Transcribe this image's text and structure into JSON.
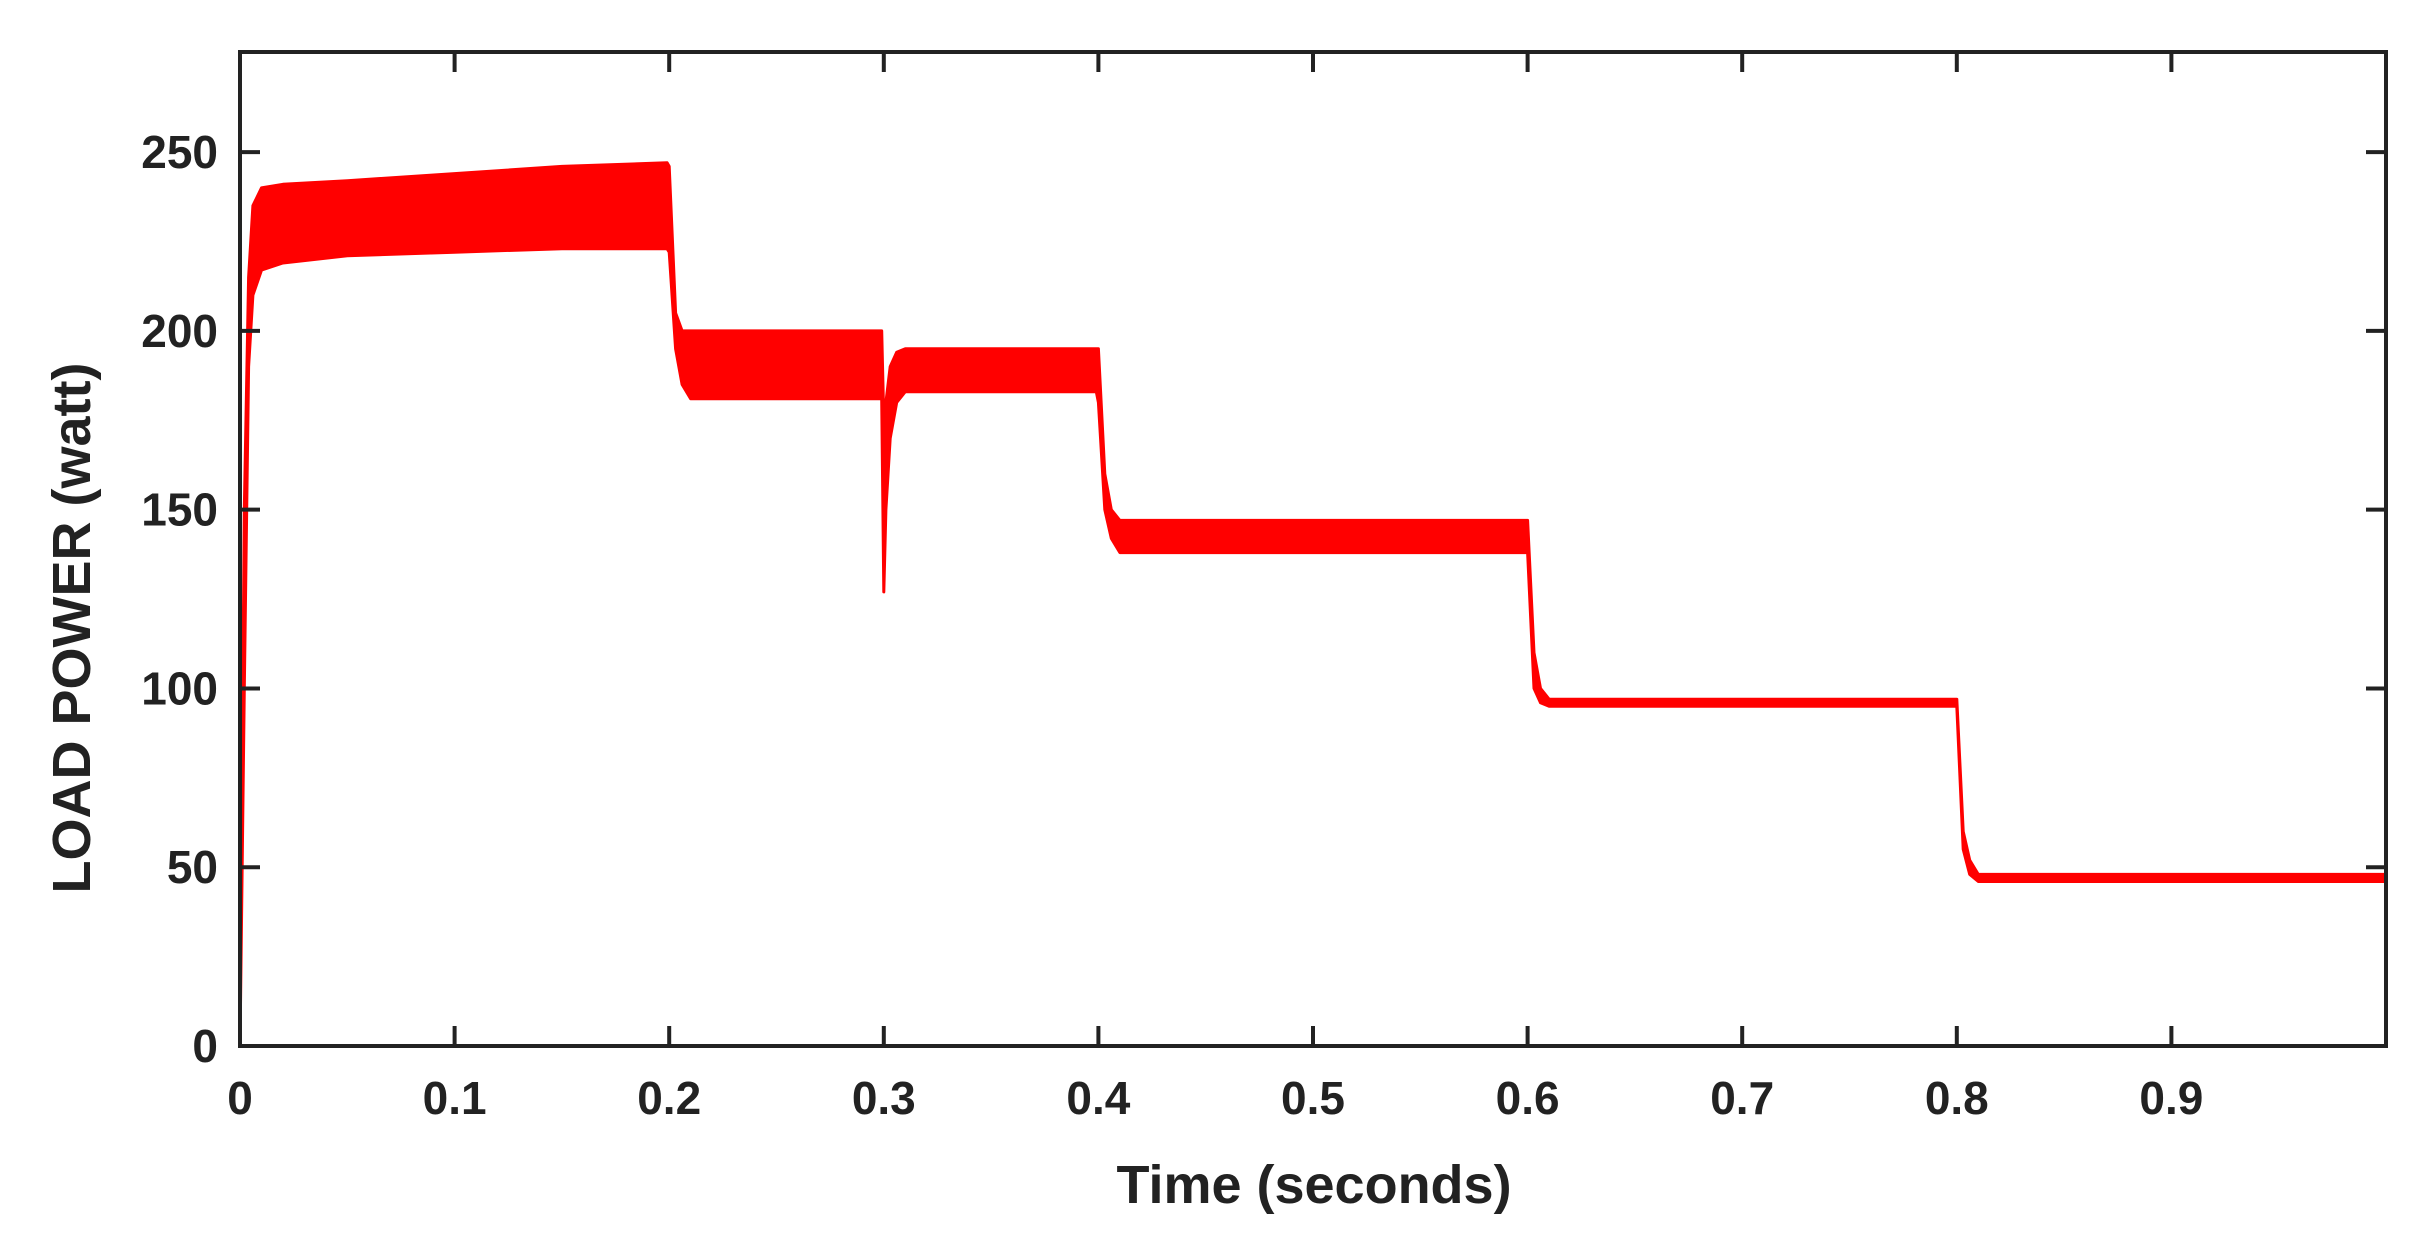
{
  "chart_data": {
    "type": "line",
    "title": "",
    "xlabel": "Time (seconds)",
    "ylabel": "LOAD POWER (watt)",
    "xlim": [
      0,
      1.0
    ],
    "ylim": [
      0,
      278
    ],
    "xticks": [
      0,
      0.1,
      0.2,
      0.3,
      0.4,
      0.5,
      0.6,
      0.7,
      0.8,
      0.9
    ],
    "xtick_labels": [
      "0",
      "0.1",
      "0.2",
      "0.3",
      "0.4",
      "0.5",
      "0.6",
      "0.7",
      "0.8",
      "0.9"
    ],
    "yticks": [
      0,
      50,
      100,
      150,
      200,
      250
    ],
    "ytick_labels": [
      "0",
      "50",
      "100",
      "150",
      "200",
      "250"
    ],
    "grid": false,
    "legend": "none",
    "series": [
      {
        "color": "#ff0000",
        "x": [
          0,
          0.002,
          0.004,
          0.006,
          0.01,
          0.02,
          0.05,
          0.1,
          0.15,
          0.199,
          0.2,
          0.203,
          0.206,
          0.21,
          0.25,
          0.299,
          0.3,
          0.301,
          0.303,
          0.306,
          0.31,
          0.35,
          0.399,
          0.4,
          0.403,
          0.406,
          0.41,
          0.45,
          0.5,
          0.55,
          0.599,
          0.6,
          0.603,
          0.606,
          0.61,
          0.7,
          0.799,
          0.8,
          0.803,
          0.806,
          0.81,
          0.9,
          1.0
        ],
        "upper": [
          0,
          150,
          215,
          235,
          240,
          241,
          242,
          244,
          246,
          247,
          246,
          205,
          200,
          200,
          200,
          200,
          175,
          180,
          190,
          194,
          195,
          195,
          195,
          195,
          160,
          150,
          147,
          147,
          147,
          147,
          147,
          147,
          110,
          100,
          97,
          97,
          97,
          97,
          60,
          52,
          48,
          48,
          48
        ],
        "lower": [
          0,
          100,
          190,
          210,
          217,
          219,
          221,
          222,
          223,
          223,
          222,
          195,
          185,
          181,
          181,
          181,
          127,
          150,
          170,
          180,
          183,
          183,
          183,
          180,
          150,
          142,
          138,
          138,
          138,
          138,
          138,
          138,
          100,
          96,
          95,
          95,
          95,
          95,
          55,
          48,
          46,
          46,
          46
        ]
      }
    ]
  },
  "colors": {
    "series": "#ff0000",
    "axis": "#222222",
    "background": "#ffffff"
  }
}
